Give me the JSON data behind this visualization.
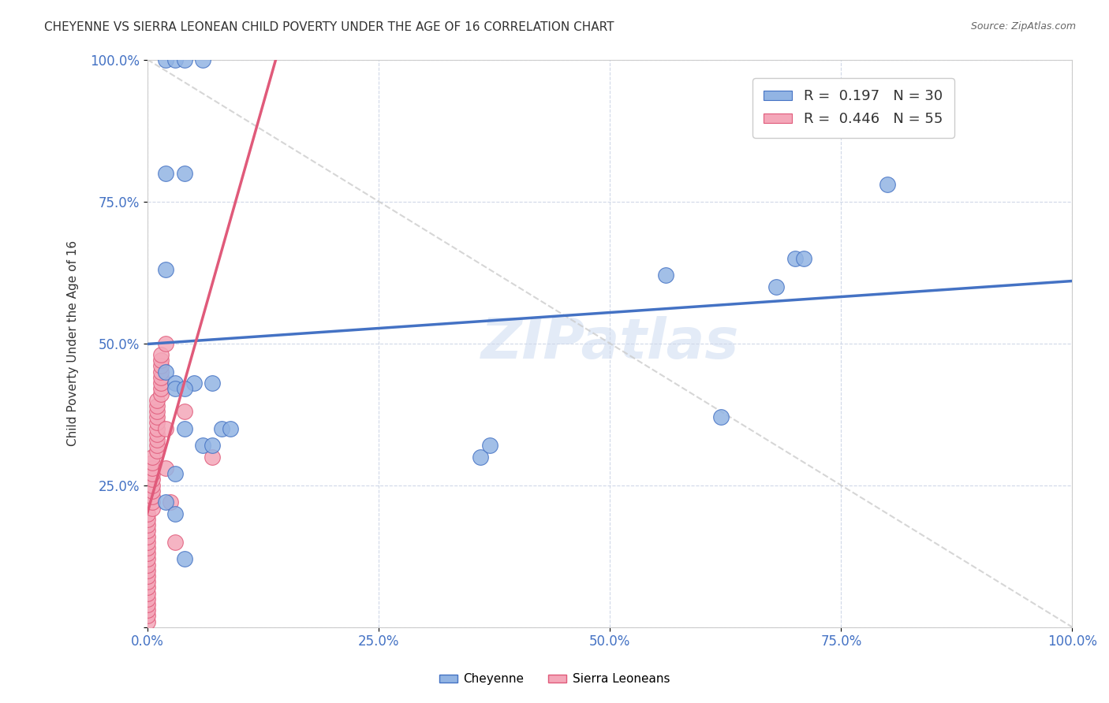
{
  "title": "CHEYENNE VS SIERRA LEONEAN CHILD POVERTY UNDER THE AGE OF 16 CORRELATION CHART",
  "source": "Source: ZipAtlas.com",
  "ylabel": "Child Poverty Under the Age of 16",
  "watermark": "ZIPatlas",
  "legend_r1": "R =  0.197",
  "legend_n1": "N = 30",
  "legend_r2": "R =  0.446",
  "legend_n2": "N = 55",
  "cheyenne_color": "#92b4e3",
  "sierra_color": "#f4a7b9",
  "trendline_cheyenne_color": "#4472c4",
  "trendline_sierra_color": "#e05a7a",
  "xlim": [
    0.0,
    1.0
  ],
  "ylim": [
    0.0,
    1.0
  ],
  "xticks": [
    0.0,
    0.25,
    0.5,
    0.75,
    1.0
  ],
  "yticks": [
    0.0,
    0.25,
    0.5,
    0.75,
    1.0
  ],
  "xticklabels": [
    "0.0%",
    "25.0%",
    "50.0%",
    "75.0%",
    "100.0%"
  ],
  "yticklabels": [
    "",
    "25.0%",
    "50.0%",
    "75.0%",
    "100.0%"
  ],
  "background_color": "#ffffff",
  "cheyenne_x": [
    0.02,
    0.03,
    0.04,
    0.06,
    0.02,
    0.04,
    0.02,
    0.02,
    0.03,
    0.05,
    0.07,
    0.03,
    0.04,
    0.04,
    0.08,
    0.09,
    0.06,
    0.07,
    0.03,
    0.02,
    0.03,
    0.04,
    0.36,
    0.37,
    0.56,
    0.62,
    0.68,
    0.7,
    0.71,
    0.8
  ],
  "cheyenne_y": [
    1.0,
    1.0,
    1.0,
    1.0,
    0.8,
    0.8,
    0.63,
    0.45,
    0.43,
    0.43,
    0.43,
    0.42,
    0.42,
    0.35,
    0.35,
    0.35,
    0.32,
    0.32,
    0.27,
    0.22,
    0.2,
    0.12,
    0.3,
    0.32,
    0.62,
    0.37,
    0.6,
    0.65,
    0.65,
    0.78
  ],
  "sierra_x": [
    0.0,
    0.0,
    0.0,
    0.0,
    0.0,
    0.0,
    0.0,
    0.0,
    0.0,
    0.0,
    0.0,
    0.0,
    0.0,
    0.0,
    0.0,
    0.0,
    0.0,
    0.0,
    0.0,
    0.0,
    0.005,
    0.005,
    0.005,
    0.005,
    0.005,
    0.005,
    0.005,
    0.005,
    0.005,
    0.005,
    0.01,
    0.01,
    0.01,
    0.01,
    0.01,
    0.01,
    0.01,
    0.01,
    0.01,
    0.01,
    0.015,
    0.015,
    0.015,
    0.015,
    0.015,
    0.015,
    0.015,
    0.015,
    0.02,
    0.02,
    0.02,
    0.025,
    0.03,
    0.04,
    0.07
  ],
  "sierra_y": [
    0.01,
    0.02,
    0.03,
    0.04,
    0.05,
    0.06,
    0.07,
    0.08,
    0.09,
    0.1,
    0.11,
    0.12,
    0.13,
    0.14,
    0.15,
    0.16,
    0.17,
    0.18,
    0.19,
    0.2,
    0.21,
    0.22,
    0.23,
    0.24,
    0.25,
    0.26,
    0.27,
    0.28,
    0.29,
    0.3,
    0.31,
    0.32,
    0.33,
    0.34,
    0.35,
    0.36,
    0.37,
    0.38,
    0.39,
    0.4,
    0.41,
    0.42,
    0.43,
    0.44,
    0.45,
    0.46,
    0.47,
    0.48,
    0.35,
    0.28,
    0.5,
    0.22,
    0.15,
    0.38,
    0.3
  ]
}
